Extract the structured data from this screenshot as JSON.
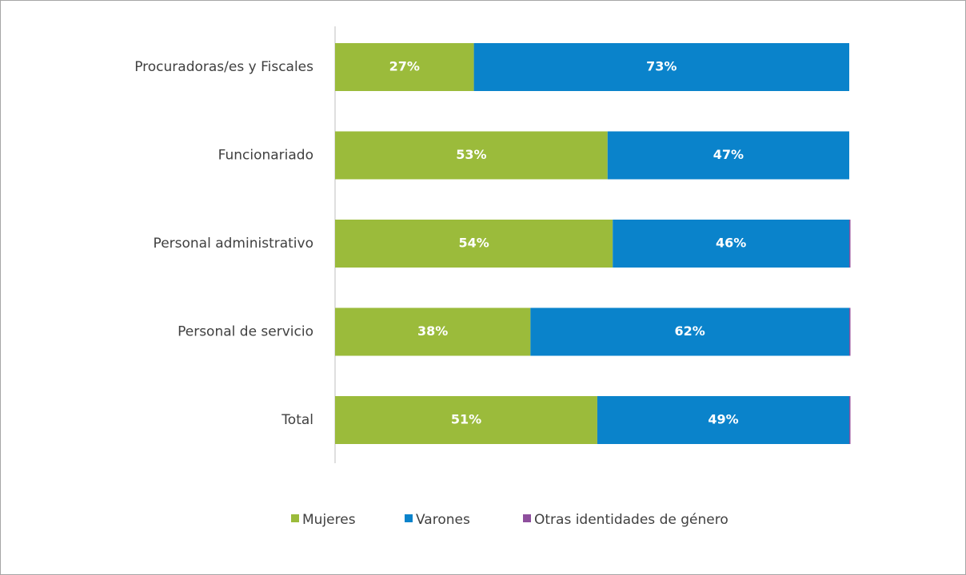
{
  "chart_data": {
    "type": "stacked-bar-horizontal",
    "categories": [
      "Procuradoras/es y Fiscales",
      "Funcionariado",
      "Personal administrativo",
      "Personal de servicio",
      "Total"
    ],
    "series": [
      {
        "name": "Mujeres",
        "color": "#9bbb3b",
        "values": [
          27,
          53,
          54,
          38,
          51
        ],
        "value_labels": [
          "27%",
          "53%",
          "54%",
          "38%",
          "51%"
        ]
      },
      {
        "name": "Varones",
        "color": "#0a83cb",
        "values": [
          73,
          47,
          46,
          62,
          49
        ],
        "value_labels": [
          "73%",
          "47%",
          "46%",
          "62%",
          "49%"
        ]
      },
      {
        "name": "Otras identidades de género",
        "color": "#8e4f9d",
        "values": [
          0,
          0,
          0.2,
          0.2,
          0.2
        ]
      }
    ],
    "xlim": [
      0,
      100
    ],
    "legend": "bottom"
  }
}
